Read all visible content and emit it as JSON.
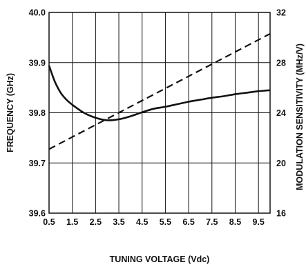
{
  "chart_data": {
    "type": "line",
    "title": "",
    "xlabel": "TUNING VOLTAGE (Vdc)",
    "ylabel_left": "FREQUENCY (GHz)",
    "ylabel_right": "MODULATION SENSITIVITY (MHz/V)",
    "xlim": [
      0.5,
      10
    ],
    "ylim_left": [
      39.6,
      40.0
    ],
    "ylim_right": [
      16,
      32
    ],
    "x_ticks": [
      "0.5",
      "1.5",
      "2.5",
      "3.5",
      "4.5",
      "5.5",
      "6.5",
      "7.5",
      "8.5",
      "9.5"
    ],
    "x_tick_values": [
      0.5,
      1.5,
      2.5,
      3.5,
      4.5,
      5.5,
      6.5,
      7.5,
      8.5,
      9.5
    ],
    "y_ticks_left": [
      "39.6",
      "39.7",
      "39.8",
      "39.9",
      "40.0"
    ],
    "y_tick_values_left": [
      39.6,
      39.7,
      39.8,
      39.9,
      40.0
    ],
    "y_ticks_right": [
      "16",
      "20",
      "24",
      "28",
      "32"
    ],
    "y_tick_values_right": [
      16,
      20,
      24,
      28,
      32
    ],
    "grid": true,
    "series": [
      {
        "axis": "left",
        "style": "solid",
        "x": [
          0.5,
          0.75,
          1.0,
          1.25,
          1.5,
          2.0,
          2.5,
          3.0,
          3.5,
          4.0,
          4.5,
          5.0,
          5.5,
          6.0,
          6.5,
          7.0,
          7.5,
          8.0,
          8.5,
          9.0,
          9.5,
          10.0
        ],
        "values": [
          39.894,
          39.862,
          39.84,
          39.826,
          39.816,
          39.8,
          39.79,
          39.785,
          39.787,
          39.793,
          39.801,
          39.808,
          39.812,
          39.817,
          39.822,
          39.826,
          39.83,
          39.833,
          39.837,
          39.84,
          39.843,
          39.845
        ]
      },
      {
        "axis": "right",
        "style": "dashed",
        "x": [
          0.5,
          10.0
        ],
        "values": [
          21.1,
          30.3
        ]
      }
    ]
  }
}
